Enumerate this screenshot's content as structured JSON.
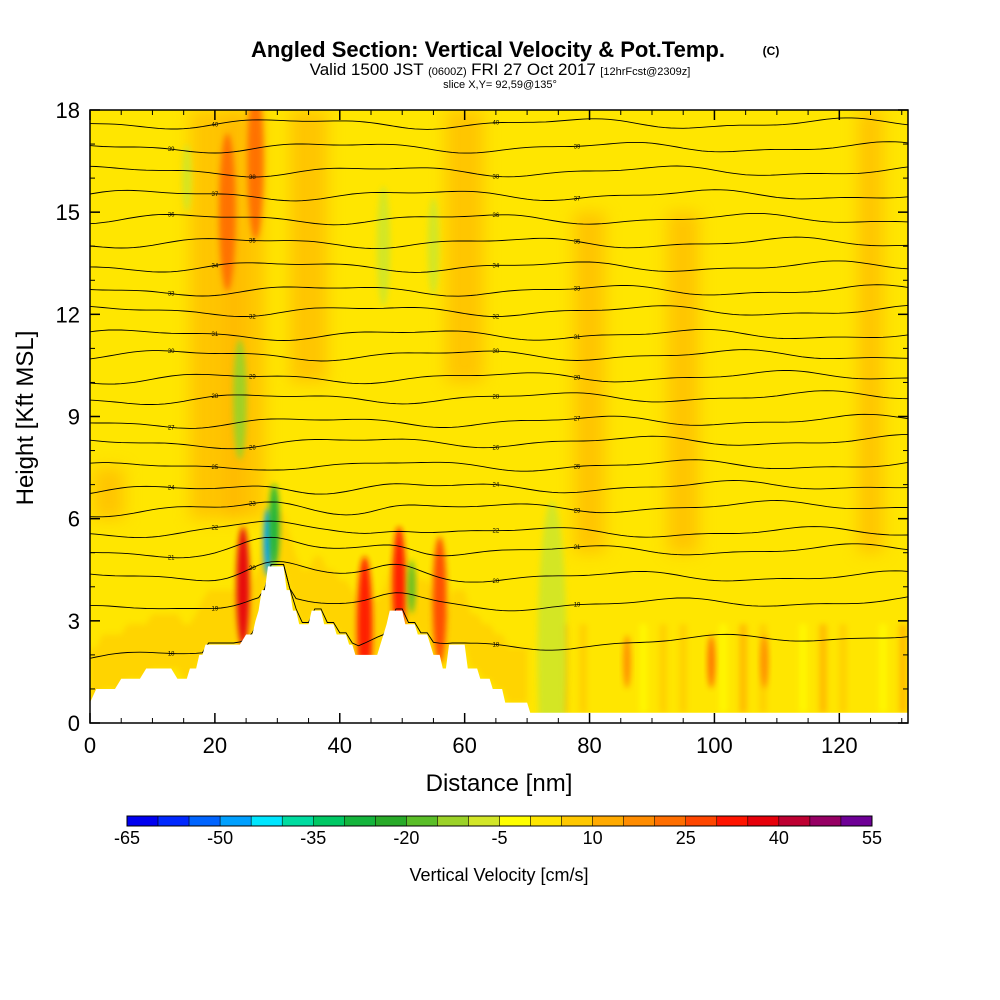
{
  "chart_data": {
    "type": "heatmap",
    "title": "Angled Section: Vertical Velocity & Pot.Temp.",
    "title_suffix": "(C)",
    "subtitle_parts": {
      "main": "Valid 1500 JST",
      "utc": "(0600Z)",
      "date": "FRI 27 Oct 2017",
      "run": "[12hrFcst@2309z]"
    },
    "slice": "slice X,Y= 92,59@135°",
    "xlabel": "Distance [nm]",
    "ylabel": "Height [Kft MSL]",
    "xlim": [
      0,
      131
    ],
    "ylim": [
      0,
      18
    ],
    "x_ticks": [
      "0",
      "20",
      "40",
      "60",
      "80",
      "100",
      "120"
    ],
    "y_ticks": [
      "0",
      "3",
      "6",
      "9",
      "12",
      "15",
      "18"
    ],
    "colorbar": {
      "label": "Vertical Velocity [cm/s]",
      "tick_labels": [
        "-65",
        "-50",
        "-35",
        "-20",
        "-5",
        "10",
        "25",
        "40",
        "55"
      ],
      "bins": [
        {
          "from": -65,
          "to": -60,
          "color": "#0000f0"
        },
        {
          "from": -60,
          "to": -55,
          "color": "#0028ff"
        },
        {
          "from": -55,
          "to": -50,
          "color": "#0064ff"
        },
        {
          "from": -50,
          "to": -45,
          "color": "#00a0ff"
        },
        {
          "from": -45,
          "to": -40,
          "color": "#00e6ff"
        },
        {
          "from": -40,
          "to": -35,
          "color": "#00dca0"
        },
        {
          "from": -35,
          "to": -30,
          "color": "#00c864"
        },
        {
          "from": -30,
          "to": -25,
          "color": "#14b43c"
        },
        {
          "from": -25,
          "to": -20,
          "color": "#28aa28"
        },
        {
          "from": -20,
          "to": -15,
          "color": "#5abe28"
        },
        {
          "from": -15,
          "to": -10,
          "color": "#9bd228"
        },
        {
          "from": -10,
          "to": -5,
          "color": "#d2e628"
        },
        {
          "from": -5,
          "to": 0,
          "color": "#ffff00"
        },
        {
          "from": 0,
          "to": 5,
          "color": "#ffe600"
        },
        {
          "from": 5,
          "to": 10,
          "color": "#ffc800"
        },
        {
          "from": 10,
          "to": 15,
          "color": "#ffaa00"
        },
        {
          "from": 15,
          "to": 20,
          "color": "#ff8c00"
        },
        {
          "from": 20,
          "to": 25,
          "color": "#ff6e00"
        },
        {
          "from": 25,
          "to": 30,
          "color": "#ff4600"
        },
        {
          "from": 30,
          "to": 35,
          "color": "#ff1400"
        },
        {
          "from": 35,
          "to": 40,
          "color": "#e6000a"
        },
        {
          "from": 40,
          "to": 45,
          "color": "#be0032"
        },
        {
          "from": 45,
          "to": 50,
          "color": "#960064"
        },
        {
          "from": 50,
          "to": 55,
          "color": "#6e0096"
        }
      ]
    },
    "terrain_profile": [
      [
        0,
        0.6
      ],
      [
        1,
        1.0
      ],
      [
        4,
        1.0
      ],
      [
        5,
        1.3
      ],
      [
        8,
        1.3
      ],
      [
        9,
        1.6
      ],
      [
        13,
        1.6
      ],
      [
        14,
        1.3
      ],
      [
        15.5,
        1.3
      ],
      [
        16,
        1.6
      ],
      [
        17,
        1.6
      ],
      [
        17.5,
        2.0
      ],
      [
        18,
        2.0
      ],
      [
        18.5,
        2.3
      ],
      [
        24,
        2.3
      ],
      [
        25,
        2.6
      ],
      [
        26,
        2.6
      ],
      [
        26.5,
        3.0
      ],
      [
        27,
        3.3
      ],
      [
        27.5,
        3.9
      ],
      [
        28,
        3.9
      ],
      [
        28.5,
        4.6
      ],
      [
        31,
        4.6
      ],
      [
        31.5,
        3.9
      ],
      [
        32,
        3.9
      ],
      [
        32.5,
        3.3
      ],
      [
        33,
        3.3
      ],
      [
        33.5,
        2.9
      ],
      [
        35,
        2.9
      ],
      [
        35.5,
        3.3
      ],
      [
        37,
        3.3
      ],
      [
        37.5,
        2.9
      ],
      [
        39,
        2.9
      ],
      [
        39.5,
        2.6
      ],
      [
        41,
        2.6
      ],
      [
        41.5,
        2.3
      ],
      [
        42,
        2.3
      ],
      [
        42.5,
        2.0
      ],
      [
        46,
        2.0
      ],
      [
        46.5,
        2.3
      ],
      [
        47,
        2.6
      ],
      [
        47.5,
        2.9
      ],
      [
        48,
        3.3
      ],
      [
        50,
        3.3
      ],
      [
        50.5,
        2.9
      ],
      [
        52,
        2.9
      ],
      [
        52.5,
        2.6
      ],
      [
        54,
        2.6
      ],
      [
        54.5,
        2.3
      ],
      [
        55,
        2.0
      ],
      [
        56,
        2.0
      ],
      [
        56.5,
        1.6
      ],
      [
        57,
        1.6
      ],
      [
        57.5,
        2.3
      ],
      [
        60,
        2.3
      ],
      [
        60.5,
        1.6
      ],
      [
        62,
        1.6
      ],
      [
        62.5,
        1.3
      ],
      [
        64,
        1.3
      ],
      [
        64.5,
        1.0
      ],
      [
        66,
        1.0
      ],
      [
        66.5,
        0.6
      ],
      [
        70,
        0.6
      ],
      [
        70.5,
        0.3
      ],
      [
        131,
        0.3
      ]
    ],
    "theta_levels": [
      {
        "y_left": 1.9,
        "y_right": 2.6,
        "label": "18"
      },
      {
        "y_left": 3.3,
        "y_right": 3.6,
        "label": "19"
      },
      {
        "y_left": 4.3,
        "y_right": 4.3,
        "label": "20"
      },
      {
        "y_left": 5.0,
        "y_right": 5.1,
        "label": "21"
      },
      {
        "y_left": 5.6,
        "y_right": 5.6,
        "label": "22"
      },
      {
        "y_left": 6.2,
        "y_right": 6.4,
        "label": "23"
      },
      {
        "y_left": 6.8,
        "y_right": 7.0,
        "label": "24"
      },
      {
        "y_left": 7.5,
        "y_right": 7.6,
        "label": "25"
      },
      {
        "y_left": 8.2,
        "y_right": 8.3,
        "label": "26"
      },
      {
        "y_left": 8.8,
        "y_right": 8.9,
        "label": "27"
      },
      {
        "y_left": 9.5,
        "y_right": 9.6,
        "label": "28"
      },
      {
        "y_left": 10.1,
        "y_right": 10.2,
        "label": "29"
      },
      {
        "y_left": 10.8,
        "y_right": 10.8,
        "label": "30"
      },
      {
        "y_left": 11.4,
        "y_right": 11.4,
        "label": "31"
      },
      {
        "y_left": 12.1,
        "y_right": 12.1,
        "label": "32"
      },
      {
        "y_left": 12.7,
        "y_right": 12.7,
        "label": "33"
      },
      {
        "y_left": 13.4,
        "y_right": 13.4,
        "label": "34"
      },
      {
        "y_left": 14.1,
        "y_right": 14.1,
        "label": "35"
      },
      {
        "y_left": 14.8,
        "y_right": 14.8,
        "label": "36"
      },
      {
        "y_left": 15.5,
        "y_right": 15.5,
        "label": "37"
      },
      {
        "y_left": 16.2,
        "y_right": 16.2,
        "label": "38"
      },
      {
        "y_left": 16.9,
        "y_right": 16.9,
        "label": "39"
      },
      {
        "y_left": 17.6,
        "y_right": 17.6,
        "label": "40"
      }
    ],
    "updraft_cells": [
      {
        "x": 24.5,
        "y": 4.0,
        "w": 1.5,
        "value": 38
      },
      {
        "x": 44,
        "y": 2.8,
        "w": 1.8,
        "value": 33
      },
      {
        "x": 49.5,
        "y": 4.0,
        "w": 1.5,
        "value": 30
      },
      {
        "x": 56,
        "y": 3.6,
        "w": 1.6,
        "value": 28
      },
      {
        "x": 22,
        "y": 15.0,
        "w": 2.0,
        "value": 20
      },
      {
        "x": 26.5,
        "y": 16.5,
        "w": 2.0,
        "value": 22
      },
      {
        "x": 99.5,
        "y": 1.8,
        "w": 0.6,
        "value": 22
      },
      {
        "x": 86,
        "y": 1.8,
        "w": 0.6,
        "value": 15
      },
      {
        "x": 108,
        "y": 1.8,
        "w": 0.6,
        "value": 15
      }
    ],
    "downdraft_cells": [
      {
        "x": 28.5,
        "y": 5.3,
        "w": 0.8,
        "value": -50
      },
      {
        "x": 29.5,
        "y": 5.8,
        "w": 1.0,
        "value": -28
      },
      {
        "x": 24,
        "y": 9.5,
        "w": 1.5,
        "value": -12
      },
      {
        "x": 47,
        "y": 14.0,
        "w": 1.5,
        "value": -10
      },
      {
        "x": 55,
        "y": 14.0,
        "w": 1.2,
        "value": -10
      },
      {
        "x": 74,
        "y": 2.0,
        "w": 4.0,
        "value": -10
      },
      {
        "x": 15.5,
        "y": 16.0,
        "w": 0.8,
        "value": -10
      },
      {
        "x": 51.5,
        "y": 4.0,
        "w": 0.6,
        "value": -20
      }
    ]
  }
}
